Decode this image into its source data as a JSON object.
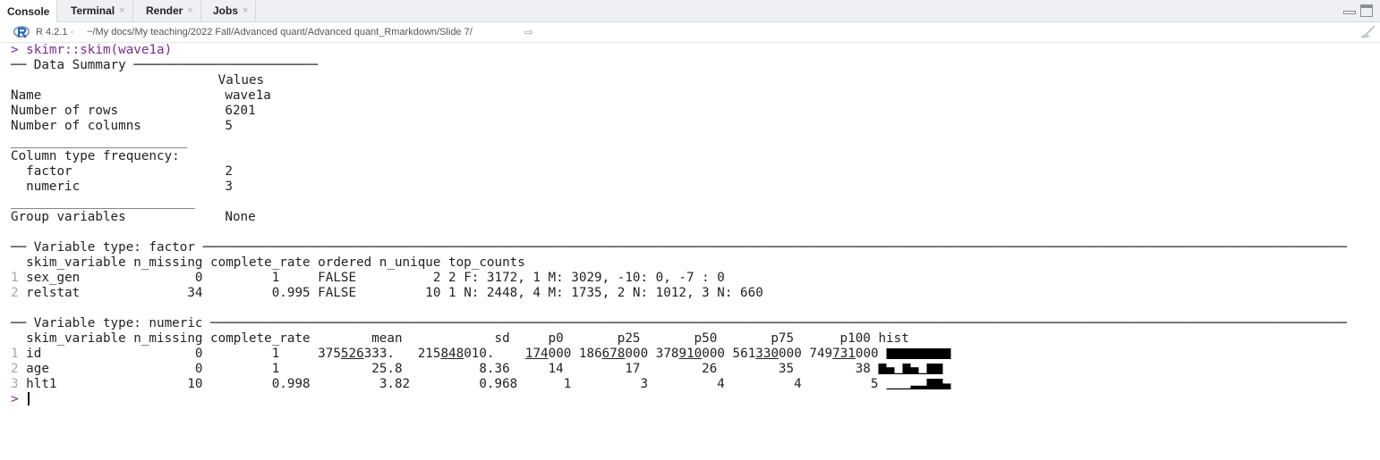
{
  "tabs": [
    {
      "label": "Console",
      "active": true
    },
    {
      "label": "Terminal",
      "close": "×"
    },
    {
      "label": "Render",
      "close": "×"
    },
    {
      "label": "Jobs",
      "close": "×"
    }
  ],
  "path_bar": {
    "r_version": "R 4.2.1",
    "separator": " · ",
    "path": "~/My docs/My teaching/2022 Fall/Advanced quant/Advanced quant_Rmarkdown/Slide 7/",
    "go_icon": "⇨"
  },
  "console": {
    "prompt": "> ",
    "command": "skimr::skim(wave1a)",
    "summary_header": "── Data Summary ────────────────────────",
    "values_header": "                           Values",
    "summary_rows": [
      {
        "label": "Name",
        "value": "wave1a"
      },
      {
        "label": "Number of rows",
        "value": "6201"
      },
      {
        "label": "Number of columns",
        "value": "5"
      }
    ],
    "sep1": "_______________________",
    "col_type_freq": "Column type frequency:",
    "type_rows": [
      {
        "label": "  factor",
        "value": "2"
      },
      {
        "label": "  numeric",
        "value": "3"
      }
    ],
    "sep2": "________________________",
    "group_row": {
      "label": "Group variables",
      "value": "None"
    },
    "factor_header": "── Variable type: factor ─────────────────────────────────────────────────────────────────────────────────────────────────────────────────────────────────────────────────────",
    "factor_columns": "  skim_variable n_missing complete_rate ordered n_unique top_counts",
    "factor_rows": [
      {
        "n": "1",
        "text": " sex_gen               0         1     FALSE          2 2 F: 3172, 1 M: 3029, -10: 0, -7 : 0"
      },
      {
        "n": "2",
        "text": " relstat              34         0.995 FALSE         10 1 N: 2448, 4 M: 1735, 2 N: 1012, 3 N: 660"
      }
    ],
    "numeric_header": "── Variable type: numeric ────────────────────────────────────────────────────────────────────────────────────────────────────────────────────────────────────────────────────",
    "numeric_columns": "  skim_variable n_missing complete_rate        mean            sd     p0       p25       p50       p75      p100 hist",
    "numeric_rows": [
      {
        "n": "1",
        "pre": " id                    0         1     375",
        "u1": "526",
        "mid1": "333.   215",
        "u2": "848",
        "mid2": "010.    ",
        "u3": "174",
        "mid3": "000 186",
        "u4": "678",
        "mid4": "000 378",
        "u5": "910",
        "mid5": "000 561",
        "u6": "330",
        "mid6": "000 749",
        "u7": "731",
        "post": "000 ",
        "hist": [
          1,
          1,
          1,
          1,
          1,
          1,
          1,
          1
        ]
      },
      {
        "n": "2",
        "text": " age                   0         1            25.8          8.36     14        17        26        35        38 ",
        "hist": [
          1,
          0.65,
          0,
          1,
          0.65,
          0,
          1,
          1
        ]
      },
      {
        "n": "3",
        "text": " hlt1                 10         0.998         3.82         0.968      1         3         4         4         5 ",
        "hist": [
          0.1,
          0.1,
          0.1,
          0.35,
          0.35,
          1,
          1,
          0.55
        ]
      }
    ],
    "final_prompt": "> "
  }
}
